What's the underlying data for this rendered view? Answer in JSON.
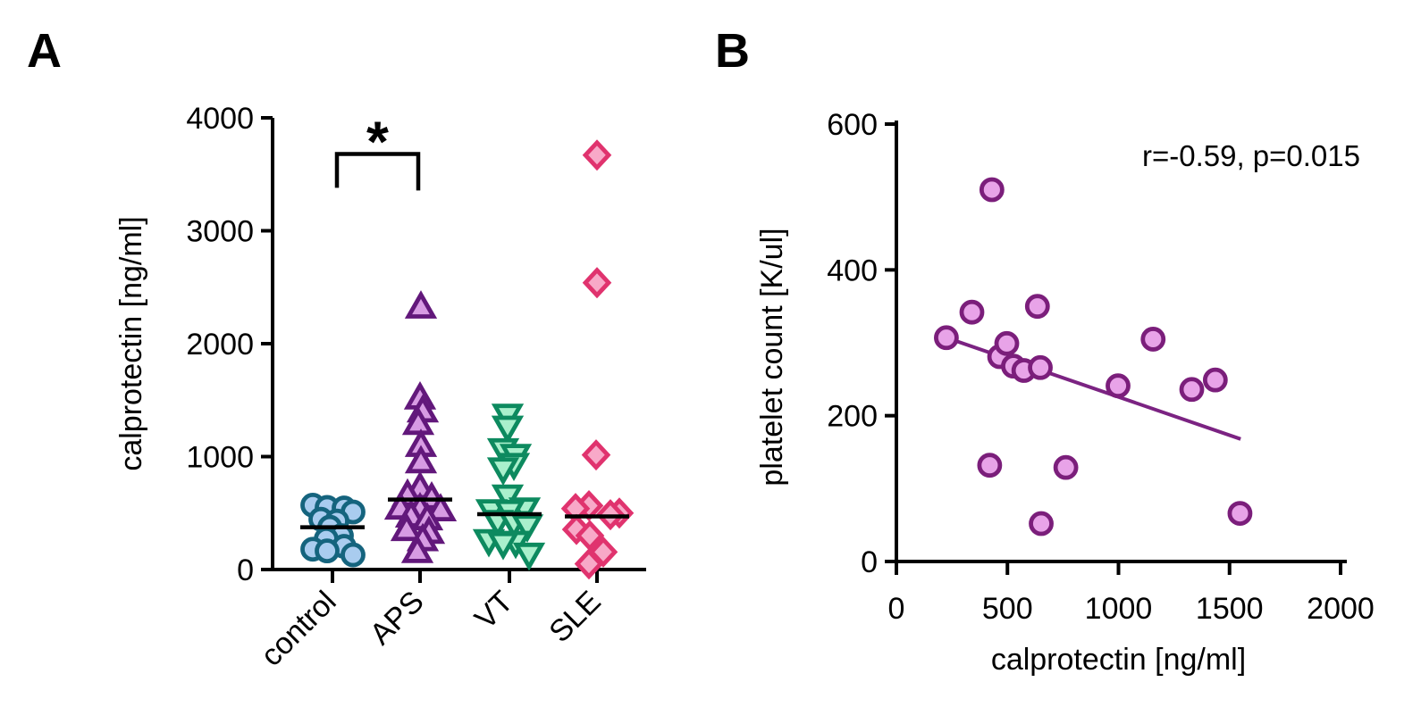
{
  "figure": {
    "panel_a_label": "A",
    "panel_b_label": "B",
    "background": "#FFFFFF",
    "text_color": "#000000"
  },
  "chart_data": [
    {
      "type": "scatter",
      "panel": "A",
      "title": "",
      "xlabel": "",
      "ylabel": "calprotectin [ng/ml]",
      "ylim": [
        0,
        4000
      ],
      "yticks": [
        0,
        1000,
        2000,
        3000,
        4000
      ],
      "grid": false,
      "categories": [
        "control",
        "APS",
        "VT",
        "SLE"
      ],
      "significance": {
        "group1": "control",
        "group2": "APS",
        "label": "*",
        "bracket_top": 3680,
        "leg_drop": 300
      },
      "groups": [
        {
          "name": "control",
          "marker": "circle",
          "fill": "#A9CCEF",
          "stroke": "#15647E",
          "median_line": 375,
          "points": [
            [
              570,
              -22
            ],
            [
              550,
              -6
            ],
            [
              545,
              13
            ],
            [
              510,
              23
            ],
            [
              445,
              -13
            ],
            [
              430,
              5
            ],
            [
              375,
              -3
            ],
            [
              300,
              10
            ],
            [
              270,
              -7
            ],
            [
              205,
              13
            ],
            [
              180,
              -22
            ],
            [
              165,
              -6
            ],
            [
              130,
              23
            ]
          ]
        },
        {
          "name": "APS",
          "marker": "triangle-up",
          "fill": "#D79BE3",
          "stroke": "#62187B",
          "median_line": 620,
          "points": [
            [
              2320,
              1
            ],
            [
              1515,
              0
            ],
            [
              1400,
              3
            ],
            [
              1290,
              -2
            ],
            [
              1095,
              1
            ],
            [
              950,
              1
            ],
            [
              720,
              0
            ],
            [
              655,
              -14
            ],
            [
              630,
              13
            ],
            [
              540,
              -22
            ],
            [
              535,
              0
            ],
            [
              525,
              23
            ],
            [
              470,
              -10
            ],
            [
              445,
              8
            ],
            [
              350,
              -15
            ],
            [
              325,
              10
            ],
            [
              260,
              3
            ],
            [
              155,
              -3
            ]
          ]
        },
        {
          "name": "VT",
          "marker": "triangle-down",
          "fill": "#A9F0CC",
          "stroke": "#0D8A5F",
          "median_line": 490,
          "points": [
            [
              1370,
              -2
            ],
            [
              1265,
              -2
            ],
            [
              1065,
              -7
            ],
            [
              1015,
              7
            ],
            [
              935,
              5
            ],
            [
              895,
              -7
            ],
            [
              655,
              -2
            ],
            [
              540,
              17
            ],
            [
              525,
              -20
            ],
            [
              520,
              0
            ],
            [
              430,
              -13
            ],
            [
              420,
              5
            ],
            [
              390,
              20
            ],
            [
              260,
              -23
            ],
            [
              245,
              7
            ],
            [
              235,
              -7
            ],
            [
              140,
              22
            ]
          ]
        },
        {
          "name": "SLE",
          "marker": "diamond",
          "fill": "#F8A9C8",
          "stroke": "#E0336E",
          "median_line": 470,
          "points": [
            [
              3670,
              0
            ],
            [
              2540,
              0
            ],
            [
              1015,
              -1
            ],
            [
              565,
              -9
            ],
            [
              540,
              -24
            ],
            [
              500,
              25
            ],
            [
              485,
              15
            ],
            [
              355,
              -23
            ],
            [
              300,
              -8
            ],
            [
              155,
              7
            ],
            [
              50,
              -9
            ]
          ]
        }
      ]
    },
    {
      "type": "scatter",
      "panel": "B",
      "title": "",
      "xlabel": "calprotectin [ng/ml]",
      "ylabel": "platelet count [K/ul]",
      "xlim": [
        0,
        2000
      ],
      "ylim": [
        0,
        600
      ],
      "xticks": [
        0,
        500,
        1000,
        1500,
        2000
      ],
      "yticks": [
        0,
        200,
        400,
        600
      ],
      "grid": false,
      "annotation": "r=-0.59, p=0.015",
      "marker": {
        "shape": "circle",
        "fill": "#E8A3E8",
        "stroke": "#7B1E7B"
      },
      "points": [
        [
          225,
          307
        ],
        [
          340,
          342
        ],
        [
          420,
          132
        ],
        [
          430,
          510
        ],
        [
          465,
          281
        ],
        [
          497,
          299
        ],
        [
          527,
          268
        ],
        [
          574,
          262
        ],
        [
          635,
          350
        ],
        [
          648,
          266
        ],
        [
          652,
          52
        ],
        [
          763,
          129
        ],
        [
          998,
          241
        ],
        [
          1156,
          305
        ],
        [
          1330,
          236
        ],
        [
          1436,
          249
        ],
        [
          1547,
          66
        ]
      ],
      "trendline": {
        "x1": 225,
        "y1": 307,
        "x2": 1550,
        "y2": 168,
        "color": "#7B2382"
      }
    }
  ]
}
